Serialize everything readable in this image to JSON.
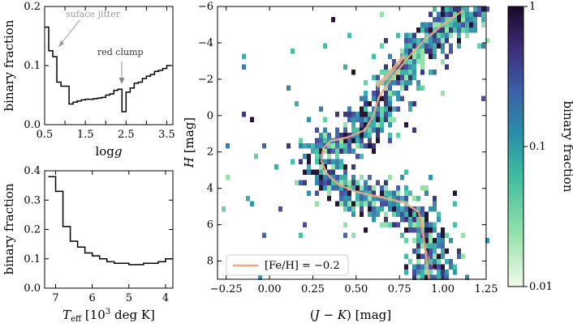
{
  "chart_data": [
    {
      "id": "logg",
      "type": "line",
      "drawstyle": "steps",
      "ylabel": "binary fraction",
      "xlabel": "logg",
      "xlim": [
        0.5,
        3.65
      ],
      "ylim": [
        0.0,
        0.2
      ],
      "xticks": [
        0.5,
        1.0,
        1.5,
        2.0,
        2.5,
        3.0,
        3.5
      ],
      "xtick_labels": [
        "0.5",
        "",
        "1.5",
        "",
        "2.5",
        "",
        "3.5"
      ],
      "yticks": [
        0.0,
        0.1,
        0.2
      ],
      "ytick_labels": [
        "0.0",
        "0.1",
        "0.2"
      ],
      "x": [
        0.55,
        0.65,
        0.75,
        0.85,
        0.95,
        1.05,
        1.15,
        1.25,
        1.35,
        1.45,
        1.55,
        1.65,
        1.75,
        1.85,
        1.95,
        2.05,
        2.15,
        2.25,
        2.35,
        2.45,
        2.55,
        2.65,
        2.75,
        2.85,
        2.95,
        3.05,
        3.15,
        3.25,
        3.35,
        3.45,
        3.55
      ],
      "y": [
        0.165,
        0.125,
        0.115,
        0.072,
        0.065,
        0.065,
        0.035,
        0.038,
        0.04,
        0.042,
        0.043,
        0.043,
        0.044,
        0.045,
        0.046,
        0.05,
        0.052,
        0.058,
        0.06,
        0.022,
        0.055,
        0.062,
        0.07,
        0.072,
        0.078,
        0.082,
        0.085,
        0.09,
        0.092,
        0.095,
        0.1
      ],
      "annotations": [
        {
          "text": "suface jitter"
        },
        {
          "text": "red clump"
        }
      ]
    },
    {
      "id": "teff",
      "type": "line",
      "drawstyle": "steps",
      "ylabel": "binary fraction",
      "xlabel": "T_eff [10^3 deg K]",
      "xlim": [
        7.3,
        3.8
      ],
      "ylim": [
        0.0,
        0.4
      ],
      "xticks": [
        7,
        6,
        5,
        4
      ],
      "xtick_labels": [
        "7",
        "6",
        "5",
        "4"
      ],
      "yticks": [
        0.0,
        0.1,
        0.2,
        0.3,
        0.4
      ],
      "ytick_labels": [
        "0.0",
        "0.1",
        "0.2",
        "0.3",
        "0.4"
      ],
      "x": [
        7.1,
        6.9,
        6.7,
        6.5,
        6.3,
        6.1,
        5.9,
        5.7,
        5.5,
        5.3,
        5.1,
        4.9,
        4.7,
        4.5,
        4.3,
        4.1,
        3.9
      ],
      "y": [
        0.38,
        0.33,
        0.21,
        0.16,
        0.14,
        0.12,
        0.11,
        0.1,
        0.09,
        0.085,
        0.085,
        0.08,
        0.08,
        0.085,
        0.085,
        0.09,
        0.1
      ]
    },
    {
      "id": "cmd",
      "type": "heatmap",
      "xlabel": "(J − K) [mag]",
      "ylabel": "H [mag]",
      "xlim": [
        -0.3,
        1.25
      ],
      "ylim": [
        9.0,
        -6.0
      ],
      "xticks": [
        -0.25,
        0.0,
        0.25,
        0.5,
        0.75,
        1.0,
        1.25
      ],
      "xtick_labels": [
        "−0.25",
        "0.00",
        "0.25",
        "0.50",
        "0.75",
        "1.00",
        "1.25"
      ],
      "yticks": [
        -6,
        -4,
        -2,
        0,
        2,
        4,
        6,
        8
      ],
      "ytick_labels": [
        "−6",
        "−4",
        "−2",
        "0",
        "2",
        "4",
        "6",
        "8"
      ],
      "density_ridge": [
        [
          0.95,
          9.0
        ],
        [
          0.9,
          7.0
        ],
        [
          0.85,
          5.5
        ],
        [
          0.7,
          4.8
        ],
        [
          0.5,
          4.3
        ],
        [
          0.38,
          3.5
        ],
        [
          0.3,
          2.8
        ],
        [
          0.32,
          1.5
        ],
        [
          0.45,
          1.2
        ],
        [
          0.58,
          0.0
        ],
        [
          0.65,
          -1.5
        ],
        [
          0.78,
          -3.0
        ],
        [
          0.95,
          -4.5
        ],
        [
          1.12,
          -5.8
        ]
      ],
      "isochrone_label": "[Fe/H] = −0.2",
      "isochrone": [
        [
          0.92,
          9.0
        ],
        [
          0.9,
          7.5
        ],
        [
          0.88,
          6.0
        ],
        [
          0.86,
          5.3
        ],
        [
          0.78,
          4.8
        ],
        [
          0.65,
          4.5
        ],
        [
          0.5,
          4.2
        ],
        [
          0.4,
          3.8
        ],
        [
          0.33,
          3.2
        ],
        [
          0.3,
          2.5
        ],
        [
          0.31,
          1.8
        ],
        [
          0.35,
          1.4
        ],
        [
          0.45,
          1.2
        ],
        [
          0.55,
          0.8
        ],
        [
          0.6,
          0.0
        ],
        [
          0.63,
          -1.0
        ],
        [
          0.7,
          -2.0
        ],
        [
          0.8,
          -3.2
        ],
        [
          0.9,
          -4.2
        ],
        [
          1.0,
          -5.0
        ],
        [
          1.12,
          -5.8
        ]
      ],
      "isochrone_dashed": [
        [
          0.86,
          5.3
        ],
        [
          0.88,
          6.5
        ],
        [
          0.91,
          7.6
        ],
        [
          0.95,
          8.5
        ]
      ],
      "track_thick": [
        [
          0.62,
          -1.6
        ],
        [
          0.7,
          -2.4
        ],
        [
          0.78,
          -3.3
        ]
      ]
    },
    {
      "id": "colorbar",
      "type": "heatmap",
      "label": "binary fraction",
      "scale": "log",
      "range": [
        0.01,
        1
      ],
      "ticks": [
        0.01,
        0.1,
        1
      ],
      "tick_labels": [
        "0.01",
        "0.1",
        "1"
      ]
    }
  ]
}
